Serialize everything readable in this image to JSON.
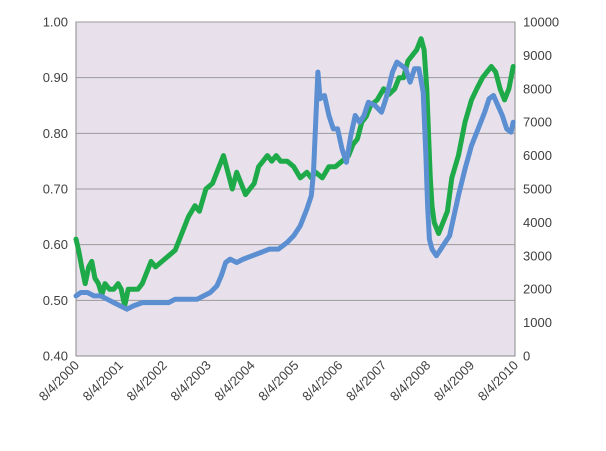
{
  "chart_data": {
    "type": "line",
    "title": "",
    "xlabel": "",
    "ylabel": "",
    "y2label": "",
    "grid": true,
    "plot_background": "#e8e1ec",
    "x_range": [
      2000.59,
      2010.59
    ],
    "ylim": [
      0.4,
      1.0
    ],
    "y2lim": [
      0,
      10000
    ],
    "x_tick_labels": [
      "8/4/2000",
      "8/4/2001",
      "8/4/2002",
      "8/4/2003",
      "8/4/2004",
      "8/4/2005",
      "8/4/2006",
      "8/4/2007",
      "8/4/2008",
      "8/4/2009",
      "8/4/2010"
    ],
    "y_tick_labels": [
      "0.40",
      "0.50",
      "0.60",
      "0.70",
      "0.80",
      "0.90",
      "1.00"
    ],
    "y2_tick_labels": [
      "0",
      "1000",
      "2000",
      "3000",
      "4000",
      "5000",
      "6000",
      "7000",
      "8000",
      "9000",
      "10000"
    ],
    "series": [
      {
        "color": "#1faa4a",
        "axis": "left",
        "points": [
          [
            2000.59,
            0.61
          ],
          [
            2000.65,
            0.59
          ],
          [
            2000.72,
            0.56
          ],
          [
            2000.8,
            0.53
          ],
          [
            2000.88,
            0.56
          ],
          [
            2000.95,
            0.57
          ],
          [
            2001.02,
            0.54
          ],
          [
            2001.1,
            0.53
          ],
          [
            2001.18,
            0.51
          ],
          [
            2001.25,
            0.53
          ],
          [
            2001.35,
            0.52
          ],
          [
            2001.45,
            0.52
          ],
          [
            2001.55,
            0.53
          ],
          [
            2001.62,
            0.52
          ],
          [
            2001.7,
            0.49
          ],
          [
            2001.78,
            0.52
          ],
          [
            2001.9,
            0.52
          ],
          [
            2002.0,
            0.52
          ],
          [
            2002.1,
            0.53
          ],
          [
            2002.2,
            0.55
          ],
          [
            2002.3,
            0.57
          ],
          [
            2002.4,
            0.56
          ],
          [
            2002.55,
            0.57
          ],
          [
            2002.7,
            0.58
          ],
          [
            2002.85,
            0.59
          ],
          [
            2003.0,
            0.62
          ],
          [
            2003.15,
            0.65
          ],
          [
            2003.3,
            0.67
          ],
          [
            2003.4,
            0.66
          ],
          [
            2003.55,
            0.7
          ],
          [
            2003.7,
            0.71
          ],
          [
            2003.85,
            0.74
          ],
          [
            2003.95,
            0.76
          ],
          [
            2004.05,
            0.73
          ],
          [
            2004.15,
            0.7
          ],
          [
            2004.25,
            0.73
          ],
          [
            2004.35,
            0.71
          ],
          [
            2004.45,
            0.69
          ],
          [
            2004.55,
            0.7
          ],
          [
            2004.65,
            0.71
          ],
          [
            2004.75,
            0.74
          ],
          [
            2004.85,
            0.75
          ],
          [
            2004.95,
            0.76
          ],
          [
            2005.05,
            0.75
          ],
          [
            2005.15,
            0.76
          ],
          [
            2005.25,
            0.75
          ],
          [
            2005.4,
            0.75
          ],
          [
            2005.55,
            0.74
          ],
          [
            2005.7,
            0.72
          ],
          [
            2005.85,
            0.73
          ],
          [
            2005.95,
            0.72
          ],
          [
            2006.05,
            0.73
          ],
          [
            2006.2,
            0.72
          ],
          [
            2006.35,
            0.74
          ],
          [
            2006.5,
            0.74
          ],
          [
            2006.65,
            0.75
          ],
          [
            2006.8,
            0.76
          ],
          [
            2006.9,
            0.78
          ],
          [
            2007.0,
            0.79
          ],
          [
            2007.1,
            0.82
          ],
          [
            2007.2,
            0.83
          ],
          [
            2007.3,
            0.85
          ],
          [
            2007.45,
            0.86
          ],
          [
            2007.6,
            0.88
          ],
          [
            2007.72,
            0.87
          ],
          [
            2007.85,
            0.88
          ],
          [
            2007.95,
            0.9
          ],
          [
            2008.05,
            0.9
          ],
          [
            2008.15,
            0.93
          ],
          [
            2008.25,
            0.94
          ],
          [
            2008.35,
            0.95
          ],
          [
            2008.45,
            0.97
          ],
          [
            2008.52,
            0.95
          ],
          [
            2008.58,
            0.88
          ],
          [
            2008.62,
            0.8
          ],
          [
            2008.66,
            0.72
          ],
          [
            2008.7,
            0.67
          ],
          [
            2008.75,
            0.64
          ],
          [
            2008.85,
            0.62
          ],
          [
            2008.95,
            0.64
          ],
          [
            2009.05,
            0.66
          ],
          [
            2009.15,
            0.72
          ],
          [
            2009.3,
            0.76
          ],
          [
            2009.45,
            0.82
          ],
          [
            2009.6,
            0.86
          ],
          [
            2009.72,
            0.88
          ],
          [
            2009.85,
            0.9
          ],
          [
            2009.95,
            0.91
          ],
          [
            2010.05,
            0.92
          ],
          [
            2010.15,
            0.91
          ],
          [
            2010.25,
            0.88
          ],
          [
            2010.35,
            0.86
          ],
          [
            2010.45,
            0.88
          ],
          [
            2010.55,
            0.92
          ]
        ]
      },
      {
        "color": "#5b8fd1",
        "axis": "right",
        "points": [
          [
            2000.59,
            1800
          ],
          [
            2000.7,
            1900
          ],
          [
            2000.85,
            1900
          ],
          [
            2001.0,
            1800
          ],
          [
            2001.15,
            1800
          ],
          [
            2001.3,
            1700
          ],
          [
            2001.45,
            1600
          ],
          [
            2001.6,
            1500
          ],
          [
            2001.75,
            1400
          ],
          [
            2001.9,
            1500
          ],
          [
            2002.1,
            1600
          ],
          [
            2002.3,
            1600
          ],
          [
            2002.5,
            1600
          ],
          [
            2002.7,
            1600
          ],
          [
            2002.85,
            1700
          ],
          [
            2003.0,
            1700
          ],
          [
            2003.2,
            1700
          ],
          [
            2003.35,
            1700
          ],
          [
            2003.5,
            1800
          ],
          [
            2003.65,
            1900
          ],
          [
            2003.8,
            2100
          ],
          [
            2003.9,
            2400
          ],
          [
            2004.0,
            2800
          ],
          [
            2004.1,
            2900
          ],
          [
            2004.25,
            2800
          ],
          [
            2004.4,
            2900
          ],
          [
            2004.6,
            3000
          ],
          [
            2004.8,
            3100
          ],
          [
            2005.0,
            3200
          ],
          [
            2005.2,
            3200
          ],
          [
            2005.4,
            3400
          ],
          [
            2005.55,
            3600
          ],
          [
            2005.7,
            3900
          ],
          [
            2005.85,
            4400
          ],
          [
            2005.95,
            4800
          ],
          [
            2006.0,
            5500
          ],
          [
            2006.05,
            7000
          ],
          [
            2006.1,
            8500
          ],
          [
            2006.15,
            7700
          ],
          [
            2006.25,
            7800
          ],
          [
            2006.35,
            7200
          ],
          [
            2006.45,
            6800
          ],
          [
            2006.55,
            6800
          ],
          [
            2006.65,
            6200
          ],
          [
            2006.75,
            5800
          ],
          [
            2006.85,
            6600
          ],
          [
            2006.95,
            7200
          ],
          [
            2007.05,
            7000
          ],
          [
            2007.15,
            7200
          ],
          [
            2007.25,
            7600
          ],
          [
            2007.4,
            7500
          ],
          [
            2007.55,
            7300
          ],
          [
            2007.65,
            7700
          ],
          [
            2007.8,
            8500
          ],
          [
            2007.9,
            8800
          ],
          [
            2008.0,
            8700
          ],
          [
            2008.1,
            8600
          ],
          [
            2008.2,
            8200
          ],
          [
            2008.3,
            8600
          ],
          [
            2008.4,
            8600
          ],
          [
            2008.5,
            7900
          ],
          [
            2008.56,
            6000
          ],
          [
            2008.6,
            4500
          ],
          [
            2008.64,
            3500
          ],
          [
            2008.7,
            3200
          ],
          [
            2008.75,
            3100
          ],
          [
            2008.8,
            3000
          ],
          [
            2008.9,
            3200
          ],
          [
            2009.0,
            3400
          ],
          [
            2009.1,
            3600
          ],
          [
            2009.2,
            4200
          ],
          [
            2009.3,
            4800
          ],
          [
            2009.45,
            5600
          ],
          [
            2009.6,
            6300
          ],
          [
            2009.75,
            6800
          ],
          [
            2009.9,
            7300
          ],
          [
            2010.0,
            7700
          ],
          [
            2010.1,
            7800
          ],
          [
            2010.2,
            7500
          ],
          [
            2010.3,
            7200
          ],
          [
            2010.4,
            6800
          ],
          [
            2010.5,
            6700
          ],
          [
            2010.55,
            7000
          ]
        ]
      }
    ]
  }
}
